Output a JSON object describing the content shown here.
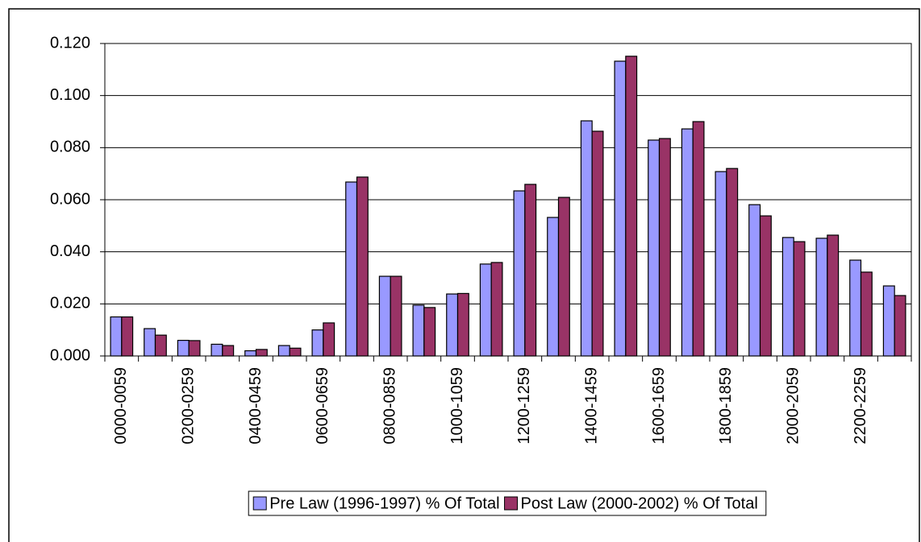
{
  "chart_data": {
    "type": "bar",
    "categories": [
      "0000-0059",
      null,
      "0200-0259",
      null,
      "0400-0459",
      null,
      "0600-0659",
      null,
      "0800-0859",
      null,
      "1000-1059",
      null,
      "1200-1259",
      null,
      "1400-1459",
      null,
      "1600-1659",
      null,
      "1800-1859",
      null,
      "2000-2059",
      null,
      "2200-2259",
      null
    ],
    "series": [
      {
        "name": "Pre Law (1996-1997) % Of Total",
        "color": "#9999ff",
        "values": [
          0.015,
          0.0105,
          0.006,
          0.0045,
          0.002,
          0.004,
          0.01,
          0.0668,
          0.0306,
          0.0195,
          0.0238,
          0.0353,
          0.0634,
          0.0532,
          0.0903,
          0.1132,
          0.0829,
          0.0872,
          0.0708,
          0.0581,
          0.0455,
          0.0452,
          0.0368,
          0.0269
        ]
      },
      {
        "name": "Post Law (2000-2002) % Of Total",
        "color": "#993366",
        "values": [
          0.015,
          0.008,
          0.0059,
          0.004,
          0.0025,
          0.003,
          0.0127,
          0.0687,
          0.0306,
          0.0186,
          0.024,
          0.0359,
          0.0659,
          0.0609,
          0.0863,
          0.1151,
          0.0835,
          0.09,
          0.072,
          0.0538,
          0.0439,
          0.0464,
          0.0322,
          0.0232
        ]
      }
    ],
    "ylim": [
      0,
      0.12
    ],
    "yticks": [
      {
        "value": 0,
        "label": "0.000"
      },
      {
        "value": 0.02,
        "label": "0.020"
      },
      {
        "value": 0.04,
        "label": "0.040"
      },
      {
        "value": 0.06,
        "label": "0.060"
      },
      {
        "value": 0.08,
        "label": "0.080"
      },
      {
        "value": 0.1,
        "label": "0.100"
      },
      {
        "value": 0.12,
        "label": "0.120"
      }
    ],
    "grid": true,
    "legend": "bottom"
  }
}
